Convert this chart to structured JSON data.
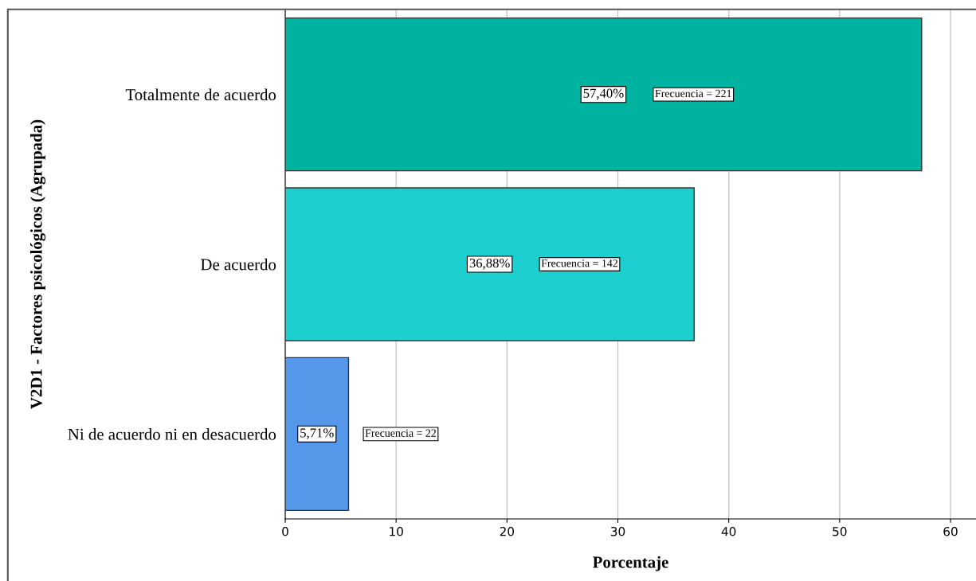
{
  "chart_data": {
    "type": "bar",
    "orientation": "horizontal",
    "xlabel": "Porcentaje",
    "ylabel": "V2D1 - Factores psicológicos (Agrupada)",
    "categories": [
      "Totalmente de acuerdo",
      "De acuerdo",
      "Ni de acuerdo ni en desacuerdo"
    ],
    "values": [
      57.4,
      36.88,
      5.71
    ],
    "colors": [
      "#00b2a0",
      "#1dcfcf",
      "#5597e8"
    ],
    "value_labels": [
      "57,40%",
      "36,88%",
      "5,71%"
    ],
    "annotations": [
      "Frecuencia = 221",
      "Frecuencia = 142",
      "Frecuencia = 22"
    ],
    "xlim": [
      0,
      62.3
    ],
    "xticks": [
      0,
      10,
      20,
      30,
      40,
      50,
      60
    ],
    "grid": "x",
    "legend": false
  }
}
